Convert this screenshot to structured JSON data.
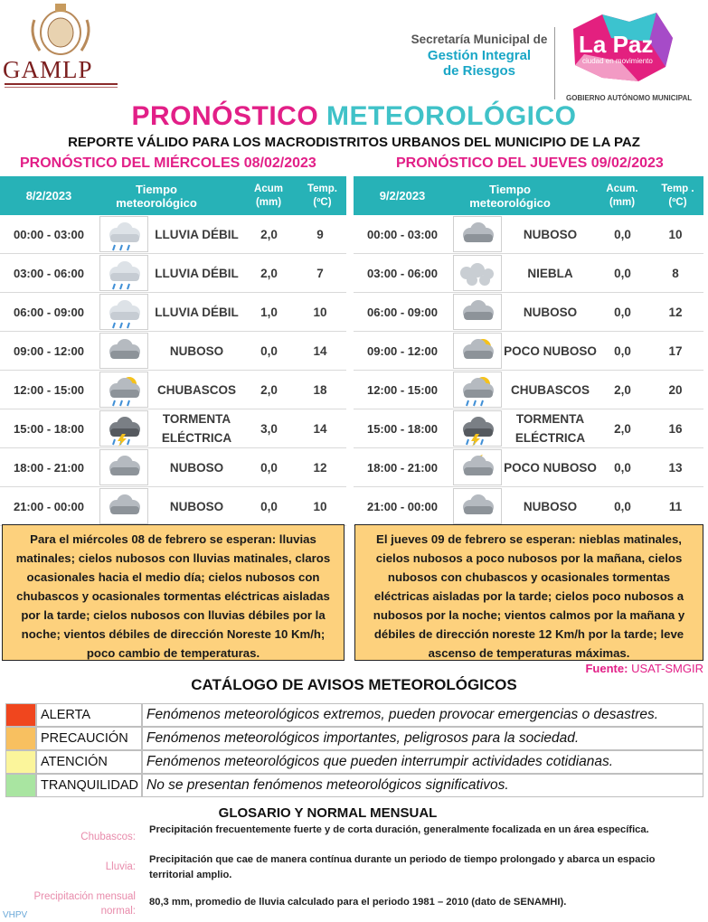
{
  "header": {
    "logo": "GAMLP",
    "secretaria": [
      "Secretaría Municipal de",
      "Gestión Integral",
      "de Riesgos"
    ],
    "brand": "La Paz",
    "brand_tagline": "ciudad en movimiento",
    "government": "GOBIERNO AUTÓNOMO MUNICIPAL"
  },
  "title": {
    "part1": "PRONÓSTICO",
    "part2": "METEOROLÓGICO"
  },
  "subtitle": "REPORTE VÁLIDO PARA LOS MACRODISTRITOS URBANOS DEL MUNICIPIO DE LA PAZ",
  "forecasts": [
    {
      "heading": "PRONÓSTICO DEL MIÉRCOLES 08/02/2023",
      "date": "8/2/2023",
      "columns": [
        "Tiempo meteorológico",
        "Acum (mm)",
        "Temp. (ºC)"
      ],
      "rows": [
        [
          "00:00 - 03:00",
          "LLUVIA DÉBIL",
          "2,0",
          "9"
        ],
        [
          "03:00 - 06:00",
          "LLUVIA DÉBIL",
          "2,0",
          "7"
        ],
        [
          "06:00 - 09:00",
          "LLUVIA DÉBIL",
          "1,0",
          "10"
        ],
        [
          "09:00 - 12:00",
          "NUBOSO",
          "0,0",
          "14"
        ],
        [
          "12:00 - 15:00",
          "CHUBASCOS",
          "2,0",
          "18"
        ],
        [
          "15:00 - 18:00",
          "TORMENTA ELÉCTRICA",
          "3,0",
          "14"
        ],
        [
          "18:00 - 21:00",
          "NUBOSO",
          "0,0",
          "12"
        ],
        [
          "21:00 - 00:00",
          "NUBOSO",
          "0,0",
          "10"
        ]
      ],
      "summary": "Para el miércoles 08 de febrero se esperan: lluvias matinales; cielos nubosos con lluvias matinales, claros ocasionales hacia el medio día; cielos nubosos con chubascos y ocasionales tormentas eléctricas aisladas por la tarde; cielos nubosos con lluvias débiles por la noche; vientos débiles de dirección Noreste 10 Km/h; poco cambio de temperaturas."
    },
    {
      "heading": "PRONÓSTICO DEL JUEVES 09/02/2023",
      "date": "9/2/2023",
      "columns": [
        "Tiempo meteorológico",
        "Acum. (mm)",
        "Temp . (ºC)"
      ],
      "rows": [
        [
          "00:00 - 03:00",
          "NUBOSO",
          "0,0",
          "10"
        ],
        [
          "03:00 - 06:00",
          "NIEBLA",
          "0,0",
          "8"
        ],
        [
          "06:00 - 09:00",
          "NUBOSO",
          "0,0",
          "12"
        ],
        [
          "09:00 - 12:00",
          "POCO NUBOSO",
          "0,0",
          "17"
        ],
        [
          "12:00 - 15:00",
          "CHUBASCOS",
          "2,0",
          "20"
        ],
        [
          "15:00 - 18:00",
          "TORMENTA ELÉCTRICA",
          "2,0",
          "16"
        ],
        [
          "18:00 - 21:00",
          "POCO NUBOSO",
          "0,0",
          "13"
        ],
        [
          "21:00 - 00:00",
          "NUBOSO",
          "0,0",
          "11"
        ]
      ],
      "summary": "El jueves 09 de febrero se esperan: nieblas matinales, cielos nubosos a poco nubosos por la mañana, cielos nubosos con chubascos y ocasionales tormentas eléctricas aisladas por la tarde; cielos poco nubosos a nubosos por la noche; vientos calmos por la mañana y débiles de dirección noreste 12 Km/h por la tarde; leve ascenso de temperaturas máximas."
    }
  ],
  "source": {
    "label": "Fuente:",
    "value": "USAT-SMGIR"
  },
  "catalog": {
    "title": "CATÁLOGO DE AVISOS METEOROLÓGICOS",
    "levels": [
      [
        "ALERTA",
        "Fenómenos meteorológicos extremos, pueden provocar emergencias o desastres."
      ],
      [
        "PRECAUCIÓN",
        "Fenómenos meteorológicos importantes, peligrosos para la sociedad."
      ],
      [
        "ATENCIÓN",
        "Fenómenos meteorológicos que pueden interrumpir actividades cotidianas."
      ],
      [
        "TRANQUILIDAD",
        "No se presentan fenómenos meteorológicos significativos."
      ]
    ]
  },
  "glossary": {
    "title": "GLOSARIO Y NORMAL MENSUAL",
    "entries": [
      [
        "Chubascos:",
        "Precipitación frecuentemente fuerte y de corta duración, generalmente focalizada en un área específica."
      ],
      [
        "Lluvia:",
        "Precipitación que cae de manera contínua durante un periodo de tiempo prolongado y abarca un espacio territorial amplio."
      ],
      [
        "Precipitación mensual normal:",
        "80,3 mm, promedio de lluvia calculado para el periodo 1981 – 2010 (dato de SENAMHI)."
      ]
    ]
  },
  "footer": "VHPV"
}
